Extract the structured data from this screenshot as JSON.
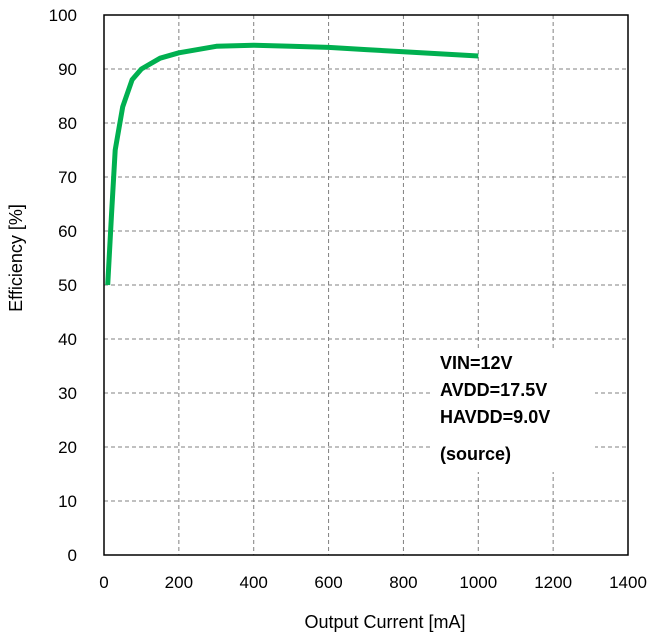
{
  "chart_data": {
    "type": "line",
    "xlabel": "Output Current [mA]",
    "ylabel": "Efficiency [%]",
    "xlim": [
      0,
      1400
    ],
    "ylim": [
      0,
      100
    ],
    "x_ticks": [
      0,
      200,
      400,
      600,
      800,
      1000,
      1200,
      1400
    ],
    "y_ticks": [
      0,
      10,
      20,
      30,
      40,
      50,
      60,
      70,
      80,
      90,
      100
    ],
    "x_tick_labels": [
      "0",
      "200",
      "400",
      "600",
      "800",
      "1000",
      "1200",
      "1400"
    ],
    "y_tick_labels": [
      "0",
      "10",
      "20",
      "30",
      "40",
      "50",
      "60",
      "70",
      "80",
      "90",
      "100"
    ],
    "grid": true,
    "series": [
      {
        "color": "#00b050",
        "x": [
          10,
          20,
          30,
          50,
          75,
          100,
          150,
          200,
          300,
          400,
          500,
          600,
          700,
          800,
          900,
          1000
        ],
        "y": [
          50,
          63,
          75,
          83,
          88,
          90,
          92,
          93,
          94.2,
          94.4,
          94.2,
          94,
          93.6,
          93.2,
          92.8,
          92.4
        ]
      }
    ],
    "annotation": {
      "lines": [
        "VIN=12V",
        "AVDD=17.5V",
        "HAVDD=9.0V",
        "(source)"
      ]
    }
  }
}
